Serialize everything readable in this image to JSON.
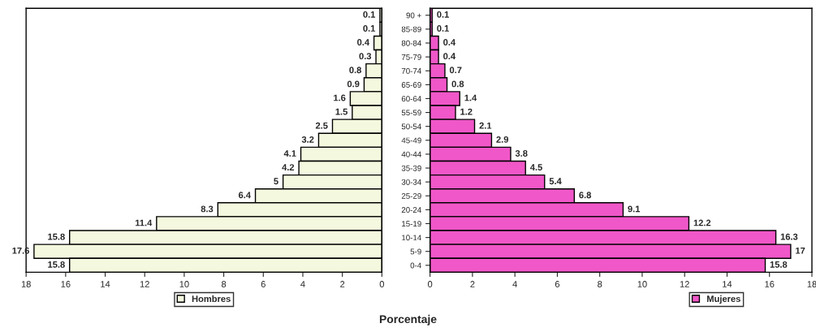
{
  "chart_data": [
    {
      "type": "bar",
      "orientation": "horizontal",
      "xlabel": "Porcentaje",
      "categories": [
        null,
        null,
        null,
        null,
        null,
        null,
        null,
        null,
        null,
        null,
        null,
        null,
        null,
        null,
        null,
        null,
        null,
        null,
        null
      ],
      "series": [
        {
          "name": "Hombres",
          "color": "#f3f8de",
          "values": [
            0.1,
            0.1,
            0.4,
            0.3,
            0.8,
            0.9,
            1.6,
            1.5,
            2.5,
            3.2,
            4.1,
            4.2,
            5,
            6.4,
            8.3,
            11.4,
            15.8,
            17.6,
            15.8
          ]
        }
      ],
      "xlim": [
        18,
        0
      ],
      "xticks": [
        18,
        16,
        14,
        12,
        10,
        8,
        6,
        4,
        2,
        0
      ],
      "data_labels": true,
      "legend": "bottom",
      "grid": false
    },
    {
      "type": "bar",
      "orientation": "horizontal",
      "categories": [
        "90 +",
        "85-89",
        "80-84",
        "75-79",
        "70-74",
        "65-69",
        "60-64",
        "55-59",
        "50-54",
        "45-49",
        "40-44",
        "35-39",
        "30-34",
        "25-29",
        "20-24",
        "15-19",
        "10-14",
        "5-9",
        "0-4"
      ],
      "series": [
        {
          "name": "Mujeres",
          "color": "#f057c8",
          "values": [
            0.1,
            0.1,
            0.4,
            0.4,
            0.7,
            0.8,
            1.4,
            1.2,
            2.1,
            2.9,
            3.8,
            4.5,
            5.4,
            6.8,
            9.1,
            12.2,
            16.3,
            17,
            15.8
          ]
        }
      ],
      "xlim": [
        0,
        18
      ],
      "xticks": [
        0,
        2,
        4,
        6,
        8,
        10,
        12,
        14,
        16,
        18
      ],
      "data_labels": true,
      "legend": "bottom right",
      "grid": false
    }
  ]
}
